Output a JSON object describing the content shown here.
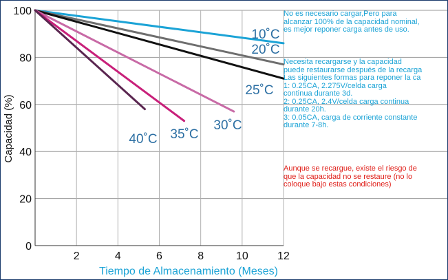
{
  "chart_data": {
    "type": "line",
    "xlabel": "Tiempo de Almacenamiento (Meses)",
    "ylabel": "Capacidad (%)",
    "x_ticks": [
      2,
      4,
      6,
      8,
      10,
      12
    ],
    "y_ticks": [
      0,
      20,
      40,
      60,
      80,
      100
    ],
    "xlim": [
      0,
      12
    ],
    "ylim": [
      0,
      100
    ],
    "grid": true,
    "series": [
      {
        "name": "10˚C",
        "color": "#1ba3d6",
        "x": [
          0,
          12
        ],
        "y": [
          100,
          86
        ]
      },
      {
        "name": "20˚C",
        "color": "#6e6e6e",
        "x": [
          0,
          12
        ],
        "y": [
          100,
          77
        ]
      },
      {
        "name": "25˚C",
        "color": "#111111",
        "x": [
          0,
          12
        ],
        "y": [
          100,
          71
        ]
      },
      {
        "name": "30˚C",
        "color": "#c86aa6",
        "x": [
          0,
          9.6
        ],
        "y": [
          100,
          57
        ]
      },
      {
        "name": "35˚C",
        "color": "#c8207a",
        "x": [
          0,
          7.2
        ],
        "y": [
          100,
          53
        ]
      },
      {
        "name": "40˚C",
        "color": "#5a2650",
        "x": [
          0,
          5.3
        ],
        "y": [
          100,
          58
        ]
      }
    ],
    "annotations": [
      {
        "text": "No es necesario cargar,Pero para\nalcanzar 100% de la capacidad nominal,\nes mejor reponer carga antes de uso.",
        "color": "#1ba3d6"
      },
      {
        "text": "Necesita recargarse y la capacidad\npuede restaurarse después de la recarga\nLas siguientes formas para reponer la ca\n1: 0.25CA, 2.275V/celda carga\ncontinua durante 3d.\n2: 0.25CA, 2.4V/celda carga continua\ndurante 20h.\n3: 0.05CA, carga de corriente constante\ndurante 7-8h.",
        "color": "#1ba3d6"
      },
      {
        "text": "Aunque se recargue, existe el riesgo de\nque la capacidad no se restaure (no lo\ncoloque bajo estas condiciones)",
        "color": "#e0201a"
      }
    ]
  }
}
